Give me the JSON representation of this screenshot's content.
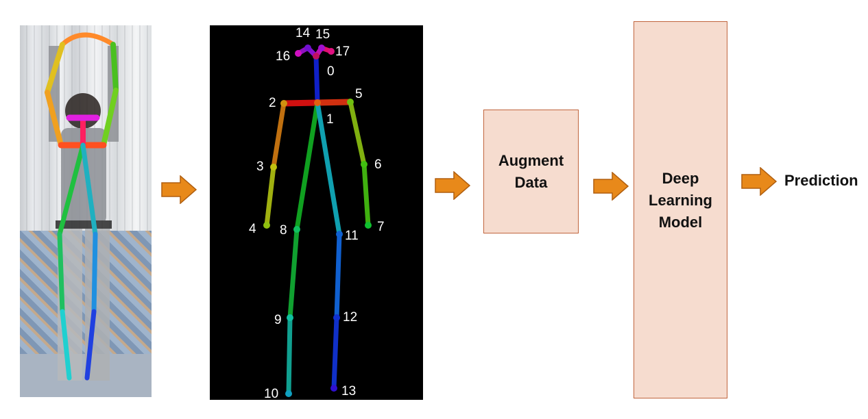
{
  "pipeline": {
    "augment_label": "Augment\nData",
    "model_label": "Deep\nLearning\nModel",
    "prediction_label": "Prediction"
  },
  "keypoints": [
    {
      "id": "0",
      "label": "0"
    },
    {
      "id": "1",
      "label": "1"
    },
    {
      "id": "2",
      "label": "2"
    },
    {
      "id": "3",
      "label": "3"
    },
    {
      "id": "4",
      "label": "4"
    },
    {
      "id": "5",
      "label": "5"
    },
    {
      "id": "6",
      "label": "6"
    },
    {
      "id": "7",
      "label": "7"
    },
    {
      "id": "8",
      "label": "8"
    },
    {
      "id": "9",
      "label": "9"
    },
    {
      "id": "10",
      "label": "10"
    },
    {
      "id": "11",
      "label": "11"
    },
    {
      "id": "12",
      "label": "12"
    },
    {
      "id": "13",
      "label": "13"
    },
    {
      "id": "14",
      "label": "14"
    },
    {
      "id": "15",
      "label": "15"
    },
    {
      "id": "16",
      "label": "16"
    },
    {
      "id": "17",
      "label": "17"
    }
  ],
  "colors": {
    "box_fill": "#f6dccf",
    "box_border": "#c0643c",
    "arrow_fill": "#e8891a",
    "arrow_border": "#b05f10",
    "skeleton_bg": "#000000"
  }
}
